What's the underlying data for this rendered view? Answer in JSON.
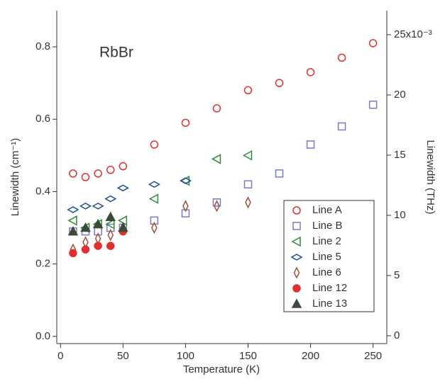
{
  "chart_data": {
    "type": "scatter",
    "title": "RbBr",
    "xlabel": "Temperature (K)",
    "ylabel": "Linewidth (cm⁻¹)",
    "y2label": "Linewidth (THz)",
    "xlim": [
      -3,
      261
    ],
    "xticks": [
      0,
      50,
      100,
      150,
      200,
      250
    ],
    "ylim": [
      -0.02,
      0.9
    ],
    "yticks": [
      {
        "value": 0,
        "label": "0.0"
      },
      0.2,
      0.4,
      0.6,
      0.8
    ],
    "y2lim": [
      -0.65,
      27
    ],
    "y2ticks": [
      0,
      5,
      10,
      15,
      20,
      {
        "value": 25,
        "label": "25x10⁻³"
      }
    ],
    "legend": "lower right",
    "series": [
      {
        "name": "Line A",
        "color": "#e0312f",
        "marker": "circle",
        "filled": false,
        "x": [
          10,
          20,
          30,
          40,
          50,
          75,
          100,
          125,
          150,
          175,
          200,
          225,
          250
        ],
        "values": [
          0.45,
          0.44,
          0.45,
          0.46,
          0.47,
          0.53,
          0.59,
          0.63,
          0.68,
          0.7,
          0.73,
          0.77,
          0.81
        ]
      },
      {
        "name": "Line B",
        "color": "#7a7ac8",
        "marker": "square",
        "filled": false,
        "x": [
          10,
          20,
          30,
          40,
          50,
          75,
          100,
          125,
          150,
          175,
          200,
          225,
          250
        ],
        "values": [
          0.29,
          0.29,
          0.29,
          0.3,
          0.3,
          0.32,
          0.34,
          0.37,
          0.42,
          0.45,
          0.53,
          0.58,
          0.64
        ]
      },
      {
        "name": "Line 2",
        "color": "#2e8b3a",
        "marker": "triangle-left",
        "filled": false,
        "x": [
          10,
          20,
          30,
          40,
          50,
          75,
          100,
          125,
          150
        ],
        "values": [
          0.32,
          0.3,
          0.31,
          0.31,
          0.32,
          0.38,
          0.43,
          0.49,
          0.5
        ]
      },
      {
        "name": "Line 5",
        "color": "#1f4e9a",
        "marker": "diamond",
        "filled": false,
        "x": [
          10,
          20,
          30,
          40,
          50,
          75,
          100
        ],
        "values": [
          0.35,
          0.36,
          0.36,
          0.38,
          0.41,
          0.42,
          0.43
        ]
      },
      {
        "name": "Line 6",
        "color": "#a0523c",
        "marker": "thin-diamond",
        "filled": false,
        "x": [
          10,
          20,
          30,
          40,
          50,
          75,
          100,
          125,
          150
        ],
        "values": [
          0.24,
          0.26,
          0.27,
          0.28,
          0.3,
          0.3,
          0.36,
          0.36,
          0.37
        ]
      },
      {
        "name": "Line 12",
        "color": "#e0312f",
        "marker": "circle",
        "filled": true,
        "x": [
          10,
          20,
          30,
          40,
          50
        ],
        "values": [
          0.23,
          0.24,
          0.25,
          0.25,
          0.29
        ]
      },
      {
        "name": "Line 13",
        "color": "#3b4a3a",
        "marker": "triangle-up",
        "filled": true,
        "x": [
          10,
          20,
          30,
          40,
          50
        ],
        "values": [
          0.29,
          0.3,
          0.31,
          0.33,
          0.3
        ]
      }
    ]
  }
}
